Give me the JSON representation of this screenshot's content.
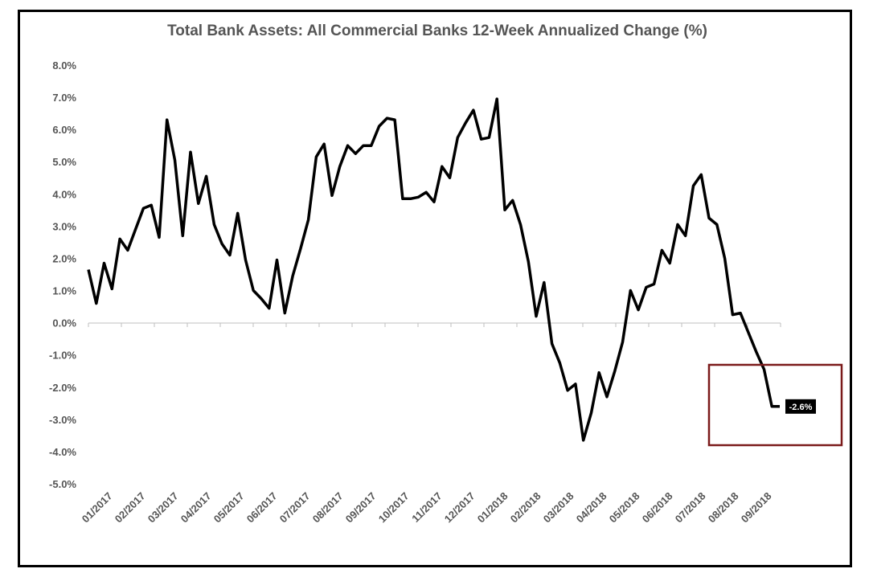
{
  "chart_data": {
    "type": "line",
    "title": "Total Bank Assets: All Commercial Banks 12-Week Annualized Change (%)",
    "xlabel": "",
    "ylabel": "",
    "ylim": [
      -5.0,
      8.0
    ],
    "y_ticks": [
      "8.0%",
      "7.0%",
      "6.0%",
      "5.0%",
      "4.0%",
      "3.0%",
      "2.0%",
      "1.0%",
      "0.0%",
      "-1.0%",
      "-2.0%",
      "-3.0%",
      "-4.0%",
      "-5.0%"
    ],
    "y_tick_values": [
      8,
      7,
      6,
      5,
      4,
      3,
      2,
      1,
      0,
      -1,
      -2,
      -3,
      -4,
      -5
    ],
    "x_ticks": [
      "01/2017",
      "02/2017",
      "03/2017",
      "04/2017",
      "05/2017",
      "06/2017",
      "07/2017",
      "08/2017",
      "09/2017",
      "10/2017",
      "11/2017",
      "12/2017",
      "01/2018",
      "02/2018",
      "03/2018",
      "04/2018",
      "05/2018",
      "06/2018",
      "07/2018",
      "08/2018",
      "09/2018"
    ],
    "grid": false,
    "series": [
      {
        "color": "#000000",
        "values": [
          1.65,
          0.6,
          1.85,
          1.05,
          2.6,
          2.25,
          2.9,
          3.55,
          3.65,
          2.65,
          6.3,
          5.05,
          2.7,
          5.3,
          3.7,
          4.55,
          3.05,
          2.45,
          2.1,
          3.4,
          1.95,
          1.0,
          0.75,
          0.45,
          1.95,
          0.3,
          1.45,
          2.3,
          3.2,
          5.15,
          5.55,
          3.95,
          4.85,
          5.5,
          5.25,
          5.5,
          5.5,
          6.1,
          6.35,
          6.3,
          3.85,
          3.85,
          3.9,
          4.05,
          3.75,
          4.85,
          4.5,
          5.75,
          6.2,
          6.6,
          5.7,
          5.75,
          6.95,
          3.5,
          3.8,
          3.05,
          1.9,
          0.2,
          1.25,
          -0.65,
          -1.25,
          -2.1,
          -1.9,
          -3.65,
          -2.8,
          -1.55,
          -2.3,
          -1.5,
          -0.6,
          1.0,
          0.4,
          1.1,
          1.2,
          2.25,
          1.85,
          3.05,
          2.7,
          4.25,
          4.6,
          3.25,
          3.05,
          2.0,
          0.25,
          0.3,
          -0.3,
          -0.9,
          -1.45,
          -2.6,
          -2.6
        ]
      }
    ],
    "annotation": {
      "label": "-2.6%",
      "highlight_color": "#7b1a1a"
    }
  }
}
